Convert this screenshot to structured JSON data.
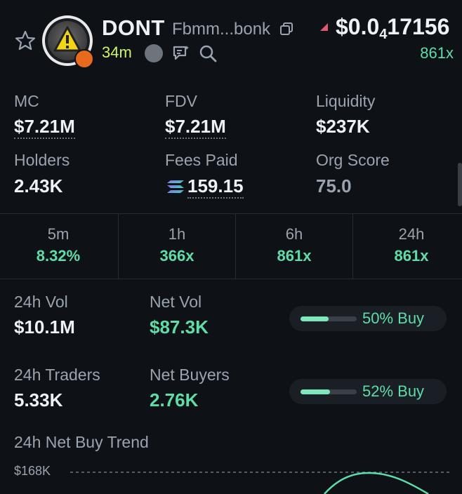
{
  "token": {
    "symbol": "DONT",
    "address": "Fbmm...bonk",
    "age": "34m",
    "price_prefix": "$0.0",
    "price_zeros": "4",
    "price_digits": "17156",
    "multiplier": "861x"
  },
  "stats": {
    "mc_label": "MC",
    "mc_value": "$7.21M",
    "fdv_label": "FDV",
    "fdv_value": "$7.21M",
    "liq_label": "Liquidity",
    "liq_value": "$237K",
    "holders_label": "Holders",
    "holders_value": "2.43K",
    "fees_label": "Fees Paid",
    "fees_value": "159.15",
    "org_label": "Org Score",
    "org_value": "75.0"
  },
  "timeframes": [
    {
      "label": "5m",
      "value": "8.32%"
    },
    {
      "label": "1h",
      "value": "366x"
    },
    {
      "label": "6h",
      "value": "861x"
    },
    {
      "label": "24h",
      "value": "861x"
    }
  ],
  "volume": {
    "vol_label": "24h Vol",
    "vol_value": "$10.1M",
    "netvol_label": "Net Vol",
    "netvol_value": "$87.3K",
    "vol_buy_text": "50% Buy",
    "vol_buy_fraction": 0.5,
    "traders_label": "24h Traders",
    "traders_value": "5.33K",
    "netbuyers_label": "Net Buyers",
    "netbuyers_value": "2.76K",
    "traders_buy_text": "52% Buy",
    "traders_buy_fraction": 0.52
  },
  "trend": {
    "title": "24h Net Buy Trend",
    "y_label": "$168K"
  },
  "colors": {
    "accent_green": "#5fdca7",
    "age_lime": "#cbf56a",
    "background": "#0e1217"
  }
}
